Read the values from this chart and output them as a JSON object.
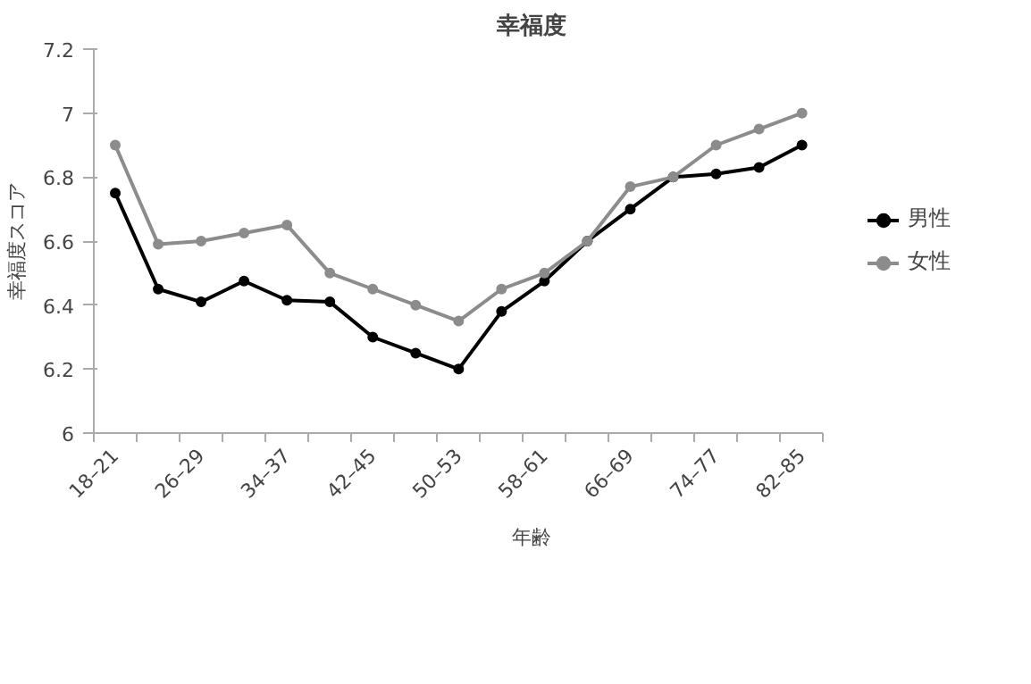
{
  "chart_data": {
    "type": "line",
    "title": "幸福度",
    "xlabel": "年齢",
    "ylabel": "幸福度スコア",
    "categories": [
      "18–21",
      null,
      "26–29",
      null,
      "34–37",
      null,
      "42–45",
      null,
      "50–53",
      null,
      "58–61",
      null,
      "66–69",
      null,
      "74–77",
      null,
      "82–85"
    ],
    "series": [
      {
        "name": "男性",
        "color": "#000000",
        "values": [
          6.75,
          6.45,
          6.41,
          6.475,
          6.415,
          6.41,
          6.3,
          6.25,
          6.2,
          6.38,
          6.475,
          6.6,
          6.7,
          6.8,
          6.81,
          6.83,
          6.9
        ]
      },
      {
        "name": "女性",
        "color": "#8c8c8c",
        "values": [
          6.9,
          6.59,
          6.6,
          6.625,
          6.65,
          6.5,
          6.45,
          6.4,
          6.35,
          6.45,
          6.5,
          6.6,
          6.77,
          6.8,
          6.9,
          6.95,
          7.0
        ]
      }
    ],
    "ylim": [
      6,
      7.2
    ],
    "yticks": [
      6,
      6.2,
      6.4,
      6.6,
      6.8,
      7,
      7.2
    ],
    "legend": "right",
    "marker": "circle",
    "line_style": "solid"
  }
}
